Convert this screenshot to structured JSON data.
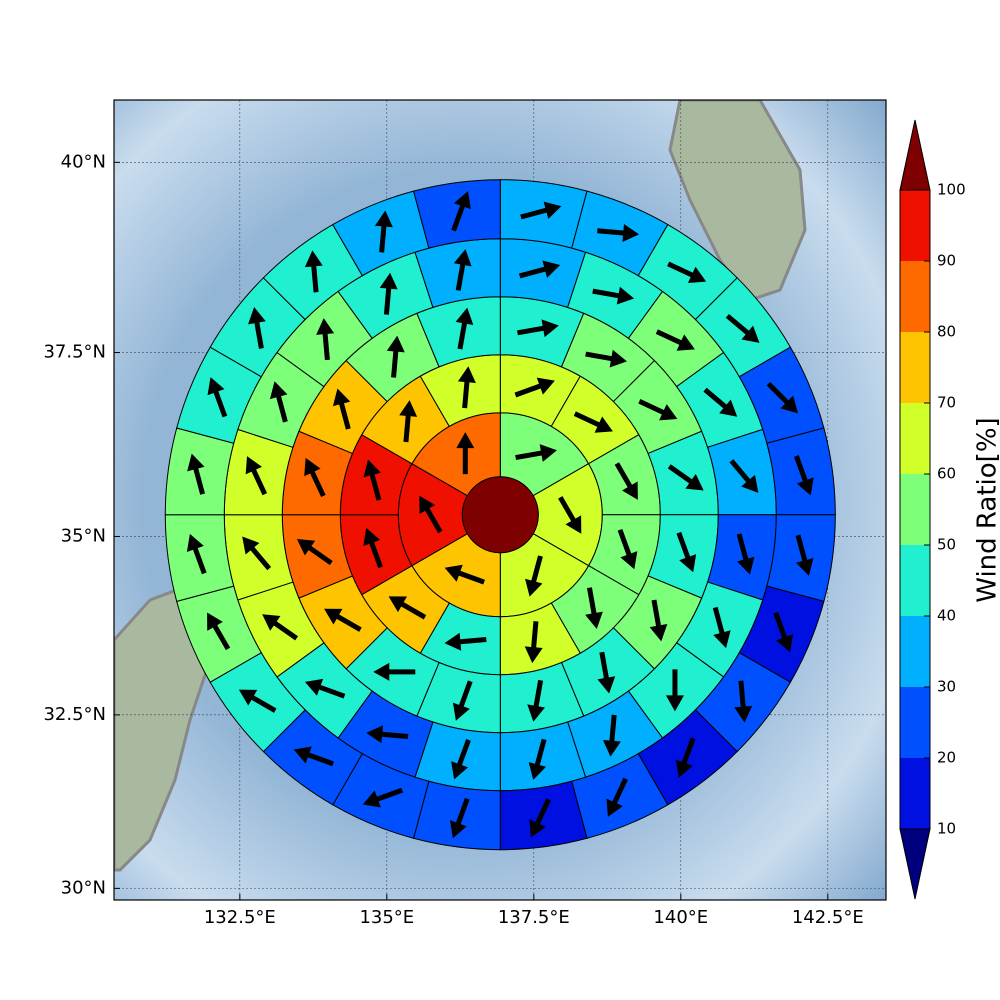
{
  "chart_data": {
    "type": "polar-wind-map",
    "xlim": [
      130.36,
      143.49
    ],
    "ylim": [
      29.83,
      40.8
    ],
    "y_scale": "mercator",
    "xticks": [
      {
        "value": 132.5,
        "label": "132.5°E"
      },
      {
        "value": 135,
        "label": "135°E"
      },
      {
        "value": 137.5,
        "label": "137.5°E"
      },
      {
        "value": 140,
        "label": "140°E"
      },
      {
        "value": 142.5,
        "label": "142.5°E"
      }
    ],
    "yticks": [
      {
        "value": 30,
        "label": "30°N"
      },
      {
        "value": 32.5,
        "label": "32.5°N"
      },
      {
        "value": 35,
        "label": "35°N"
      },
      {
        "value": 37.5,
        "label": "37.5°N"
      },
      {
        "value": 40,
        "label": "40°N"
      }
    ],
    "grid": true,
    "center": [
      136.93,
      35.3
    ],
    "center_value": 105,
    "rings": [
      {
        "values": [
          55,
          65,
          62,
          75,
          92,
          85
        ],
        "directions": [
          80,
          150,
          195,
          290,
          330,
          0
        ]
      },
      {
        "values": [
          62,
          64,
          55,
          52,
          55,
          61,
          45,
          74,
          93,
          92,
          75,
          65
        ],
        "directions": [
          70,
          115,
          150,
          160,
          170,
          185,
          265,
          300,
          340,
          345,
          5,
          5
        ]
      },
      {
        "values": [
          45,
          55,
          52,
          45,
          44,
          55,
          42,
          44,
          42,
          45,
          72,
          82,
          83,
          75,
          55,
          45
        ],
        "directions": [
          80,
          100,
          115,
          125,
          160,
          170,
          170,
          190,
          200,
          270,
          300,
          305,
          335,
          345,
          5,
          10
        ]
      },
      {
        "values": [
          35,
          42,
          55,
          45,
          35,
          25,
          45,
          42,
          35,
          32,
          35,
          25,
          45,
          62,
          65,
          63,
          55,
          52,
          45,
          35
        ],
        "directions": [
          75,
          100,
          115,
          130,
          140,
          165,
          165,
          180,
          185,
          195,
          200,
          275,
          290,
          305,
          320,
          335,
          345,
          355,
          5,
          10
        ]
      },
      {
        "values": [
          33,
          35,
          42,
          45,
          25,
          22,
          24,
          15,
          22,
          15,
          25,
          18,
          25,
          22,
          25,
          42,
          55,
          52,
          55,
          45,
          42,
          45,
          35,
          22
        ],
        "directions": [
          75,
          95,
          115,
          130,
          135,
          160,
          165,
          160,
          175,
          200,
          205,
          205,
          200,
          250,
          290,
          300,
          330,
          340,
          345,
          340,
          350,
          355,
          5,
          20
        ]
      }
    ],
    "colorbar": {
      "label": "Wind Ratio[%]",
      "ticks": [
        10,
        20,
        30,
        40,
        50,
        60,
        70,
        80,
        90,
        100
      ],
      "colors": [
        "#0010e0",
        "#0050ff",
        "#00b0ff",
        "#20f0d0",
        "#7dff7a",
        "#d0ff2a",
        "#ffc400",
        "#ff6a00",
        "#f01000"
      ],
      "under_color": "#00007f",
      "over_color": "#7f0000"
    }
  }
}
